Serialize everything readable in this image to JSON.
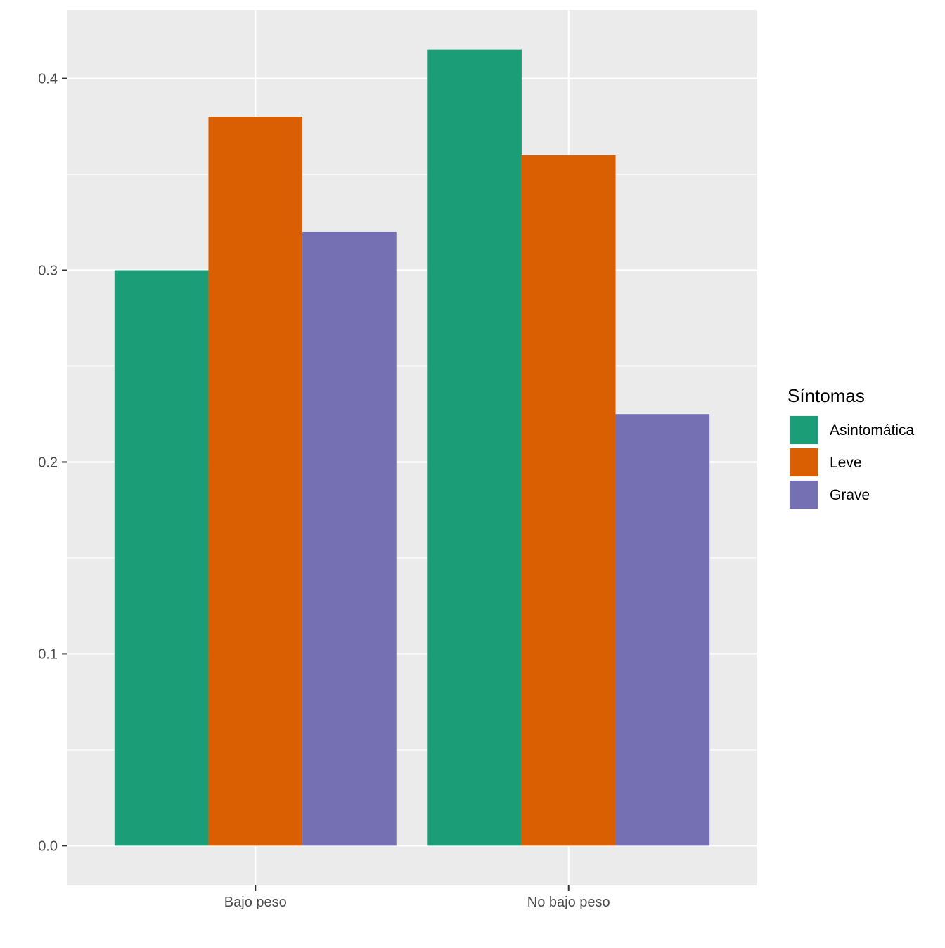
{
  "chart_data": {
    "type": "bar",
    "title": "",
    "xlabel": "",
    "ylabel": "",
    "categories": [
      "Bajo peso",
      "No bajo peso"
    ],
    "series": [
      {
        "name": "Asintomática",
        "values": [
          0.3,
          0.415
        ],
        "color": "#1B9E77"
      },
      {
        "name": "Leve",
        "values": [
          0.38,
          0.36
        ],
        "color": "#D95F02"
      },
      {
        "name": "Grave",
        "values": [
          0.32,
          0.225
        ],
        "color": "#7570B3"
      }
    ],
    "ylim": [
      -0.02075,
      0.43575
    ],
    "yticks": [
      0.0,
      0.1,
      0.2,
      0.3,
      0.4
    ],
    "ytick_labels": [
      "0.0",
      "0.1",
      "0.2",
      "0.3",
      "0.4"
    ],
    "grid": true,
    "panel_background": "#EBEBEB",
    "legend": {
      "title": "Síntomas",
      "position": "right"
    }
  }
}
